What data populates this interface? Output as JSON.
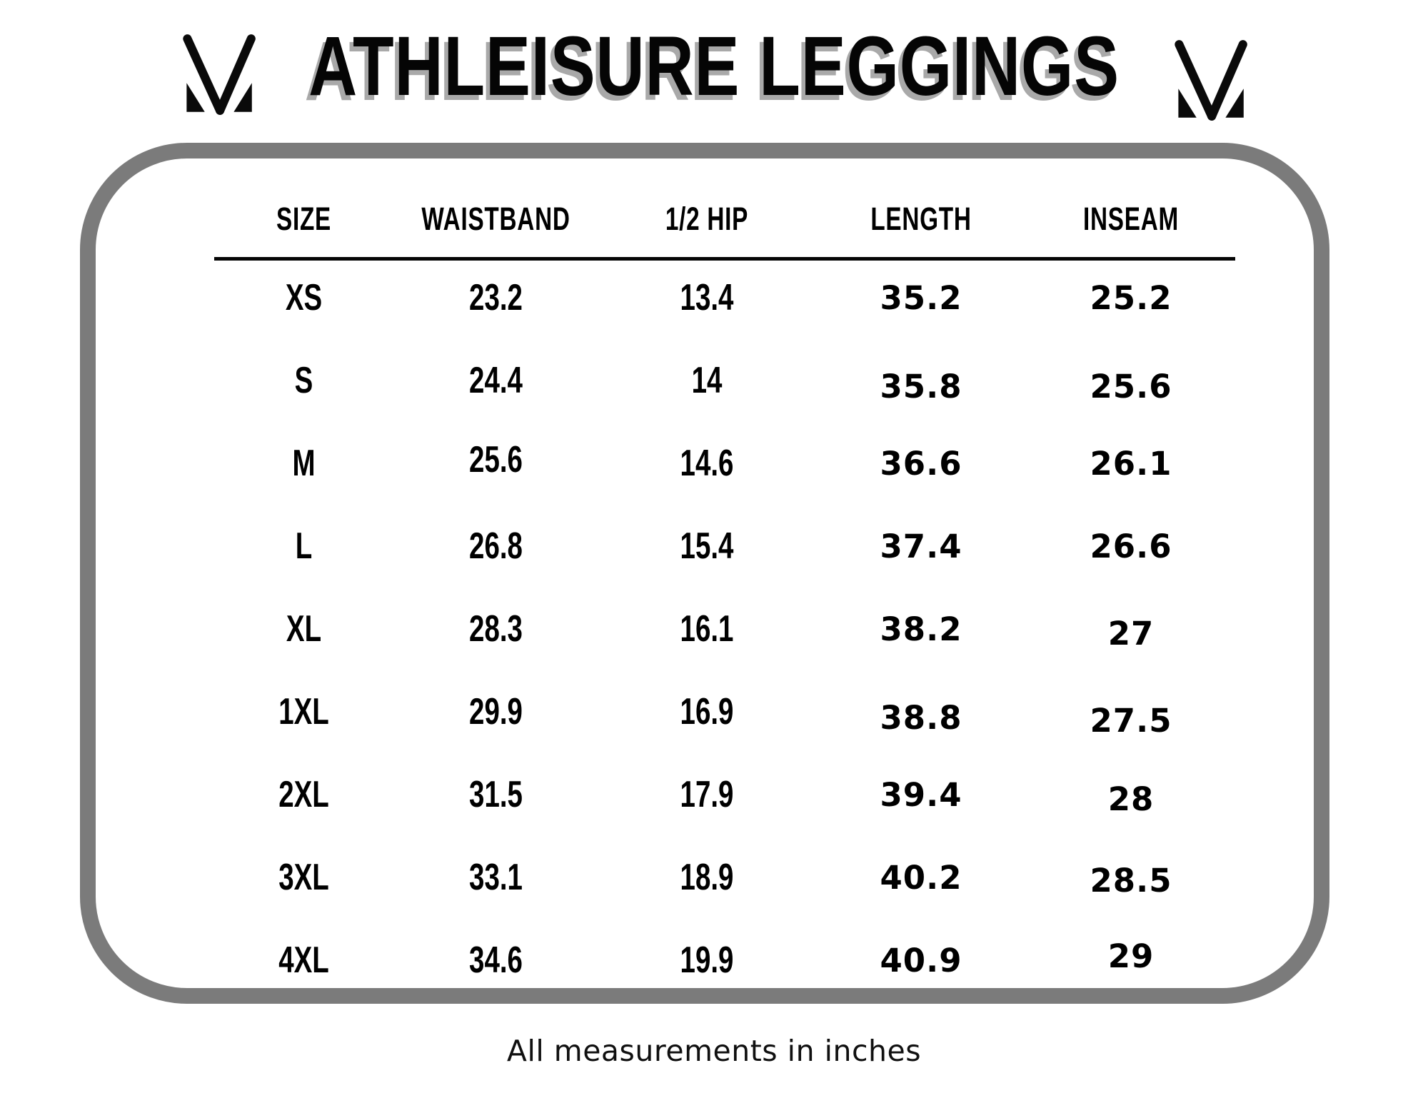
{
  "title": "ATHLEISURE LEGGINGS",
  "logo": {
    "name": "mv-monogram",
    "color": "#0a0a0a"
  },
  "footnote": "All measurements in inches",
  "colors": {
    "background": "#ffffff",
    "text": "#050505",
    "box_border": "#7b7b7b",
    "title_shadow": "#a9a9a9"
  },
  "table": {
    "columns": [
      "SIZE",
      "WAISTBAND",
      "1/2 HIP",
      "LENGTH",
      "INSEAM"
    ],
    "rows": [
      {
        "size": "XS",
        "waistband": "23.2",
        "half_hip": "13.4",
        "length": "35.2",
        "inseam": "25.2"
      },
      {
        "size": "S",
        "waistband": "24.4",
        "half_hip": "14",
        "length": "35.8",
        "inseam": "25.6"
      },
      {
        "size": "M",
        "waistband": "25.6",
        "half_hip": "14.6",
        "length": "36.6",
        "inseam": "26.1"
      },
      {
        "size": "L",
        "waistband": "26.8",
        "half_hip": "15.4",
        "length": "37.4",
        "inseam": "26.6"
      },
      {
        "size": "XL",
        "waistband": "28.3",
        "half_hip": "16.1",
        "length": "38.2",
        "inseam": "27"
      },
      {
        "size": "1XL",
        "waistband": "29.9",
        "half_hip": "16.9",
        "length": "38.8",
        "inseam": "27.5"
      },
      {
        "size": "2XL",
        "waistband": "31.5",
        "half_hip": "17.9",
        "length": "39.4",
        "inseam": "28"
      },
      {
        "size": "3XL",
        "waistband": "33.1",
        "half_hip": "18.9",
        "length": "40.2",
        "inseam": "28.5"
      },
      {
        "size": "4XL",
        "waistband": "34.6",
        "half_hip": "19.9",
        "length": "40.9",
        "inseam": "29"
      }
    ]
  }
}
